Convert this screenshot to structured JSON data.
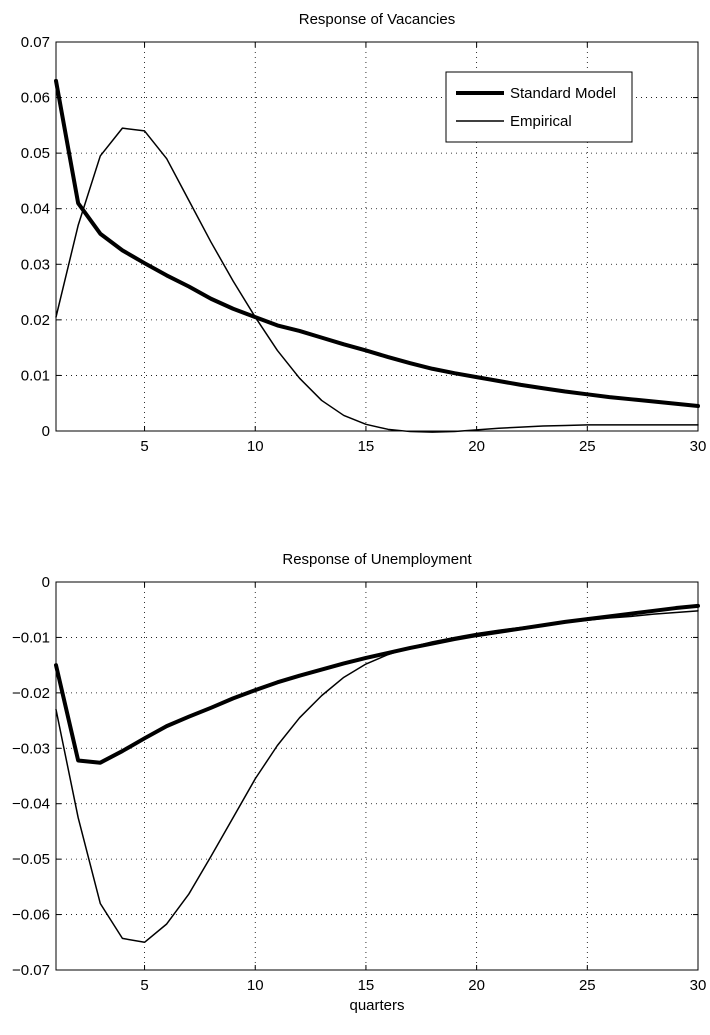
{
  "chart_data": [
    {
      "type": "line",
      "title": "Response of Vacancies",
      "xlabel": "",
      "ylabel": "",
      "xlim": [
        1,
        30
      ],
      "ylim": [
        0,
        0.07
      ],
      "xticks": [
        5,
        10,
        15,
        20,
        25,
        30
      ],
      "yticks": [
        0,
        0.01,
        0.02,
        0.03,
        0.04,
        0.05,
        0.06,
        0.07
      ],
      "ytick_labels": [
        "0",
        "0.01",
        "0.02",
        "0.03",
        "0.04",
        "0.05",
        "0.06",
        "0.07"
      ],
      "grid": true,
      "legend": "top-right",
      "x": [
        1,
        2,
        3,
        4,
        5,
        6,
        7,
        8,
        9,
        10,
        11,
        12,
        13,
        14,
        15,
        16,
        17,
        18,
        19,
        20,
        21,
        22,
        23,
        24,
        25,
        26,
        27,
        28,
        29,
        30
      ],
      "series": [
        {
          "name": "Standard Model",
          "style": "thick",
          "color": "#000000",
          "values": [
            0.063,
            0.041,
            0.0355,
            0.0325,
            0.0302,
            0.028,
            0.026,
            0.0238,
            0.022,
            0.0205,
            0.019,
            0.018,
            0.0168,
            0.0156,
            0.0145,
            0.0133,
            0.0122,
            0.0112,
            0.0104,
            0.0097,
            0.009,
            0.0083,
            0.0077,
            0.0071,
            0.0066,
            0.0061,
            0.0057,
            0.0053,
            0.0049,
            0.0045
          ]
        },
        {
          "name": "Empirical",
          "style": "thin",
          "color": "#000000",
          "values": [
            0.0205,
            0.037,
            0.0495,
            0.0545,
            0.054,
            0.049,
            0.0415,
            0.034,
            0.027,
            0.0205,
            0.0145,
            0.0095,
            0.0055,
            0.0028,
            0.0012,
            0.0003,
            -0.0001,
            -0.0002,
            -0.0001,
            0.0002,
            0.0005,
            0.0007,
            0.0009,
            0.001,
            0.0011,
            0.0011,
            0.0011,
            0.0011,
            0.0011,
            0.0011
          ]
        }
      ]
    },
    {
      "type": "line",
      "title": "Response of Unemployment",
      "xlabel": "quarters",
      "ylabel": "",
      "xlim": [
        1,
        30
      ],
      "ylim": [
        -0.07,
        0
      ],
      "xticks": [
        5,
        10,
        15,
        20,
        25,
        30
      ],
      "yticks": [
        -0.07,
        -0.06,
        -0.05,
        -0.04,
        -0.03,
        -0.02,
        -0.01,
        0
      ],
      "ytick_labels": [
        "−0.07",
        "−0.06",
        "−0.05",
        "−0.04",
        "−0.03",
        "−0.02",
        "−0.01",
        "0"
      ],
      "grid": true,
      "x": [
        1,
        2,
        3,
        4,
        5,
        6,
        7,
        8,
        9,
        10,
        11,
        12,
        13,
        14,
        15,
        16,
        17,
        18,
        19,
        20,
        21,
        22,
        23,
        24,
        25,
        26,
        27,
        28,
        29,
        30
      ],
      "series": [
        {
          "style": "thick",
          "color": "#000000",
          "values": [
            -0.015,
            -0.0322,
            -0.0326,
            -0.0305,
            -0.0282,
            -0.026,
            -0.0243,
            -0.0227,
            -0.021,
            -0.0195,
            -0.0181,
            -0.0169,
            -0.0158,
            -0.0147,
            -0.0137,
            -0.0128,
            -0.0119,
            -0.0111,
            -0.0103,
            -0.0096,
            -0.009,
            -0.0084,
            -0.0078,
            -0.0072,
            -0.0067,
            -0.0062,
            -0.0057,
            -0.0052,
            -0.0047,
            -0.0043
          ]
        },
        {
          "style": "thin",
          "color": "#000000",
          "values": [
            -0.023,
            -0.0425,
            -0.058,
            -0.0643,
            -0.065,
            -0.0617,
            -0.0563,
            -0.0495,
            -0.0425,
            -0.0355,
            -0.0295,
            -0.0245,
            -0.0205,
            -0.0172,
            -0.0148,
            -0.0131,
            -0.0118,
            -0.0108,
            -0.01,
            -0.0093,
            -0.0087,
            -0.0082,
            -0.0077,
            -0.0073,
            -0.0069,
            -0.0065,
            -0.0062,
            -0.0058,
            -0.0055,
            -0.0052
          ]
        }
      ]
    }
  ]
}
